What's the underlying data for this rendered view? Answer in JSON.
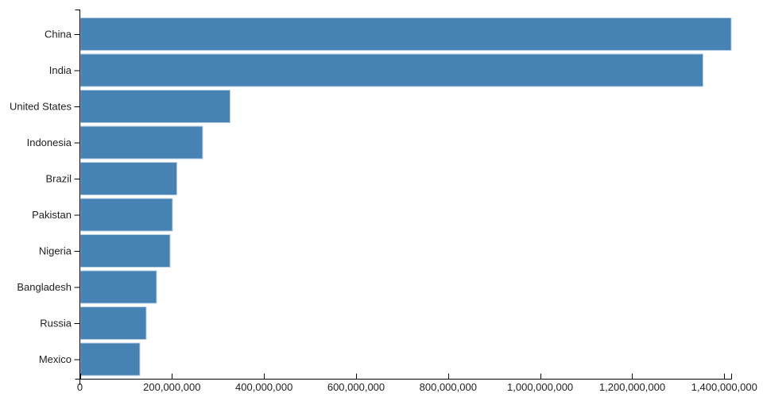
{
  "chart_data": {
    "type": "bar",
    "orientation": "horizontal",
    "title": "",
    "xlabel": "",
    "ylabel": "",
    "categories": [
      "China",
      "India",
      "United States",
      "Indonesia",
      "Brazil",
      "Pakistan",
      "Nigeria",
      "Bangladesh",
      "Russia",
      "Mexico"
    ],
    "values": [
      1415045928,
      1354051854,
      326766748,
      266794980,
      210867954,
      200813818,
      195875237,
      166368149,
      143964709,
      130759074
    ],
    "xlim": [
      0,
      1415045928
    ],
    "x_ticks": [
      {
        "value": 0,
        "label": "0"
      },
      {
        "value": 200000000,
        "label": "200,000,000"
      },
      {
        "value": 400000000,
        "label": "400,000,000"
      },
      {
        "value": 600000000,
        "label": "600,000,000"
      },
      {
        "value": 800000000,
        "label": "800,000,000"
      },
      {
        "value": 1000000000,
        "label": "1,000,000,000"
      },
      {
        "value": 1200000000,
        "label": "1,200,000,000"
      },
      {
        "value": 1400000000,
        "label": "1,400,000,000"
      }
    ],
    "grid": false,
    "legend": false,
    "colors": {
      "bar_fill": "#4682b4",
      "bar_stroke": "#b9d0e4",
      "axis": "#000000",
      "text": "#212121",
      "background": "#ffffff"
    }
  }
}
